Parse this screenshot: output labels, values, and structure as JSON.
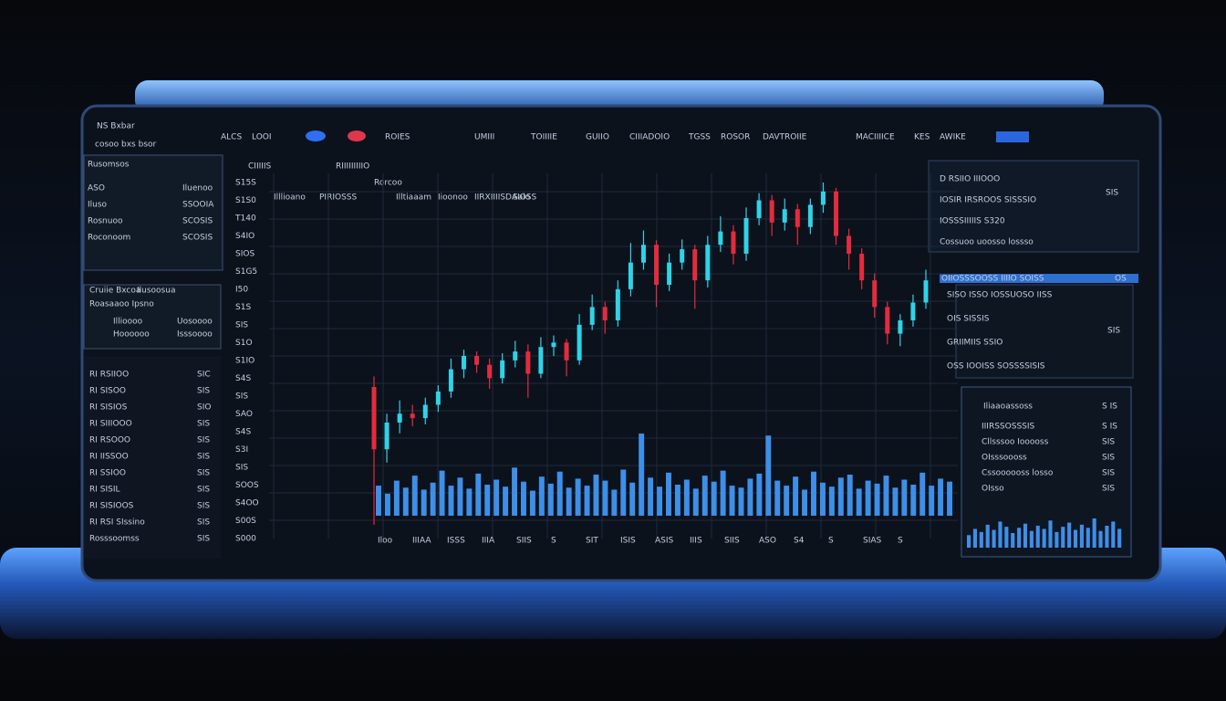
{
  "header": {
    "logo": "NS Bxbar",
    "tagline": "cosoo bxs bsor",
    "nav": [
      "ALCS",
      "LOOI",
      "ROIES",
      "UMIII",
      "TOIIIIE",
      "GUIIO",
      "CIIIADOIO",
      "TGSS",
      "ROSOR",
      "DAVTROIIE",
      "MACIIIICE",
      "KES",
      "AWIKE"
    ]
  },
  "left_panel": {
    "title": "Rusomsos",
    "stats": [
      [
        "ASO",
        "Iluenoo"
      ],
      [
        "Iluso",
        "SSOOIA"
      ],
      [
        "Rosnuoo",
        "SCOSIS"
      ],
      [
        "Roconoom",
        "SCOSIS"
      ]
    ],
    "tabs": [
      "Cruiie Bxcoa",
      "Ilusoosua"
    ],
    "tab_sub": "Roasaaoo Ipsno",
    "mini": [
      [
        "Illioooo",
        "Uosoooo"
      ],
      [
        "Hoooooo",
        "Isssoooo"
      ]
    ],
    "list": [
      [
        "RI RSIIOO",
        "SIC"
      ],
      [
        "RI SISOO",
        "SIS"
      ],
      [
        "RI SISIOS",
        "SIO"
      ],
      [
        "RI SIIIOOO",
        "SIS"
      ],
      [
        "RI RSOOO",
        "SIS"
      ],
      [
        "RI IISSOO",
        "SIS"
      ],
      [
        "RI SSIOO",
        "SIS"
      ],
      [
        "RI SISIL",
        "SIS"
      ],
      [
        "RI SISIOOS",
        "SIS"
      ],
      [
        "RI RSI SIssino",
        "SIS"
      ],
      [
        "Rosssoomss",
        "SIS"
      ]
    ]
  },
  "chart": {
    "tabs": [
      "CIIIIIS",
      "RIIIIIIIIIO"
    ],
    "columns": [
      "Illlioano",
      "PIRIOSSS",
      "Rorcoo",
      "Illtiaaam",
      "Iioonoo",
      "IIRXIIIISDAIOSS",
      "Saio"
    ],
    "y_labels": [
      "S15S",
      "S1S0",
      "T140",
      "S4IO",
      "SIOS",
      "S1G5",
      "I50",
      "S1S",
      "SIS",
      "S1O",
      "S1IO",
      "S4S",
      "SIS",
      "SAO",
      "S4S",
      "S3I",
      "SIS",
      "SOOS",
      "S4OO",
      "S00S",
      "S000"
    ],
    "x_labels": [
      "Iloo",
      "IIIAA",
      "ISSS",
      "IIIA",
      "SIIS",
      "S",
      "SIT",
      "ISIS",
      "ASIS",
      "IIIS",
      "SIIS",
      "ASO",
      "S4",
      "S",
      "SIAS",
      "S"
    ],
    "candles": [
      [
        180,
        192,
        25,
        110
      ],
      [
        110,
        150,
        95,
        140
      ],
      [
        140,
        165,
        128,
        150
      ],
      [
        150,
        160,
        136,
        145
      ],
      [
        145,
        168,
        138,
        160
      ],
      [
        160,
        182,
        152,
        175
      ],
      [
        175,
        212,
        168,
        200
      ],
      [
        200,
        222,
        190,
        215
      ],
      [
        215,
        220,
        196,
        205
      ],
      [
        205,
        212,
        178,
        190
      ],
      [
        190,
        218,
        184,
        210
      ],
      [
        210,
        232,
        202,
        220
      ],
      [
        220,
        228,
        168,
        195
      ],
      [
        195,
        236,
        190,
        225
      ],
      [
        225,
        238,
        215,
        230
      ],
      [
        230,
        234,
        192,
        210
      ],
      [
        210,
        262,
        205,
        250
      ],
      [
        250,
        284,
        244,
        270
      ],
      [
        270,
        276,
        240,
        255
      ],
      [
        255,
        300,
        248,
        290
      ],
      [
        290,
        342,
        282,
        320
      ],
      [
        320,
        356,
        312,
        340
      ],
      [
        340,
        345,
        270,
        295
      ],
      [
        295,
        330,
        288,
        320
      ],
      [
        320,
        346,
        312,
        335
      ],
      [
        335,
        340,
        268,
        300
      ],
      [
        300,
        350,
        292,
        340
      ],
      [
        340,
        372,
        332,
        355
      ],
      [
        355,
        362,
        318,
        330
      ],
      [
        330,
        382,
        322,
        370
      ],
      [
        370,
        398,
        362,
        390
      ],
      [
        390,
        396,
        350,
        365
      ],
      [
        365,
        392,
        356,
        380
      ],
      [
        380,
        386,
        340,
        360
      ],
      [
        360,
        392,
        352,
        385
      ],
      [
        385,
        410,
        376,
        400
      ],
      [
        400,
        404,
        340,
        350
      ],
      [
        350,
        358,
        312,
        330
      ],
      [
        330,
        336,
        290,
        300
      ],
      [
        300,
        308,
        258,
        270
      ],
      [
        270,
        276,
        228,
        240
      ],
      [
        240,
        262,
        226,
        255
      ],
      [
        255,
        284,
        248,
        275
      ],
      [
        275,
        312,
        268,
        300
      ]
    ],
    "volume": [
      30,
      22,
      35,
      28,
      40,
      26,
      33,
      45,
      30,
      38,
      27,
      42,
      31,
      36,
      29,
      48,
      34,
      25,
      39,
      32,
      44,
      28,
      37,
      30,
      41,
      35,
      26,
      46,
      33,
      82,
      38,
      29,
      43,
      31,
      36,
      27,
      40,
      34,
      45,
      30,
      28,
      37,
      42,
      80,
      35,
      30,
      39,
      26,
      44,
      33,
      29,
      38,
      41,
      27,
      35,
      32,
      40,
      28,
      36,
      31,
      43,
      30,
      37,
      34
    ]
  },
  "right_panel": {
    "top": [
      "D RSIIO IIIOOO",
      "IOSIR IRSROOS SISSSIO",
      "IOSSSIIIIIS S320",
      "Cossuoo uoosso lossso"
    ],
    "top_value": "SIS",
    "highlight": [
      "OIIOSSSOOSS IIIIO SOISS",
      "OS"
    ],
    "rows": [
      "SISO ISSO IOSSUOSO IISS",
      "OIS SISSIS",
      "GRIIMIIS SSIO",
      "OSS IOOISS SOSSSSISIS"
    ],
    "row_value": "SIS"
  },
  "depth_panel": {
    "title": "Iliaaoassoss",
    "title_value": "S IS",
    "rows": [
      [
        "IIIRSSOSSSIS",
        "S IS"
      ],
      [
        "Cllsssoo Iooooss",
        "SIS"
      ],
      [
        "OIsssoooss",
        "SIS"
      ],
      [
        "Cssoooooss losso",
        "SIS"
      ],
      [
        "OIsso",
        "SIS"
      ]
    ],
    "volume": [
      12,
      18,
      15,
      22,
      17,
      25,
      20,
      14,
      19,
      23,
      16,
      21,
      18,
      26,
      15,
      20,
      24,
      17,
      22,
      19,
      28,
      16,
      21,
      25,
      18
    ]
  }
}
